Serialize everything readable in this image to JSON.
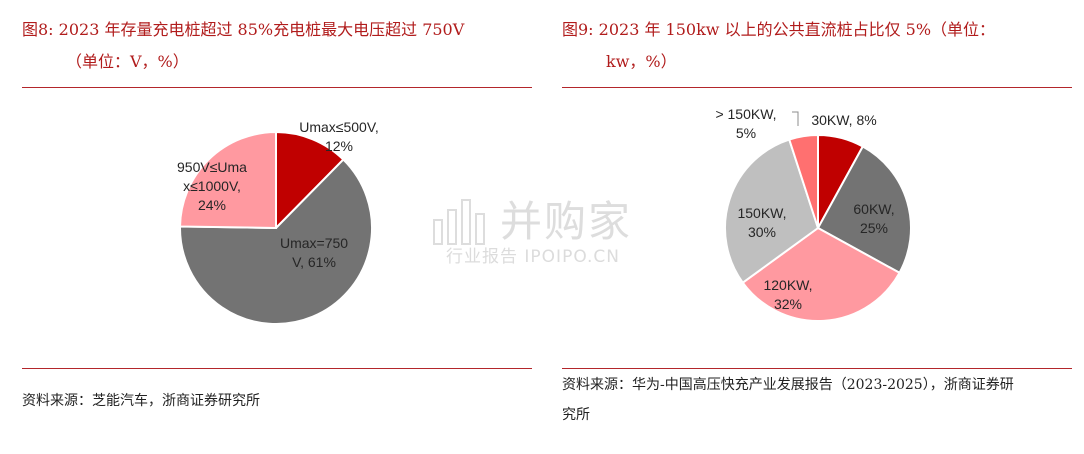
{
  "figures": [
    {
      "title_line1": "图8:   2023 年存量充电桩超过 85%充电桩最大电压超过 750V",
      "title_line2": "（单位：V，%）",
      "source": "资料来源：芝能汽车，浙商证券研究所"
    },
    {
      "title_line1": "图9:   2023 年 150kw 以上的公共直流桩占比仅 5%（单位：",
      "title_line2": "kw，%）",
      "source_line1": "资料来源：华为-中国高压快充产业发展报告（2023-2025），浙商证券研",
      "source_line2": "究所"
    }
  ],
  "watermark": {
    "name": "并购家",
    "sub": "行业报告 IPOIPO.CN"
  },
  "chart_data": [
    {
      "type": "pie",
      "title": "",
      "slices": [
        {
          "label_lines": [
            "Umax≤500V,",
            "12%"
          ],
          "value": 12,
          "color": "#c00000"
        },
        {
          "label_lines": [
            "Umax=750",
            "V, 61%"
          ],
          "value": 61,
          "color": "#737373"
        },
        {
          "label_lines": [
            "950V≤Uma",
            "x≤1000V,",
            "24%"
          ],
          "value": 24,
          "color": "#ff99a0"
        }
      ]
    },
    {
      "type": "pie",
      "title": "",
      "slices": [
        {
          "label_lines": [
            "30KW, 8%"
          ],
          "value": 8,
          "color": "#c00000"
        },
        {
          "label_lines": [
            "60KW,",
            "25%"
          ],
          "value": 25,
          "color": "#737373"
        },
        {
          "label_lines": [
            "120KW,",
            "32%"
          ],
          "value": 32,
          "color": "#ff99a0"
        },
        {
          "label_lines": [
            "150KW,",
            "30%"
          ],
          "value": 30,
          "color": "#bfbfbf"
        },
        {
          "label_lines": [
            "> 150KW,",
            "5%"
          ],
          "value": 5,
          "color": "#ff7070"
        }
      ]
    }
  ]
}
